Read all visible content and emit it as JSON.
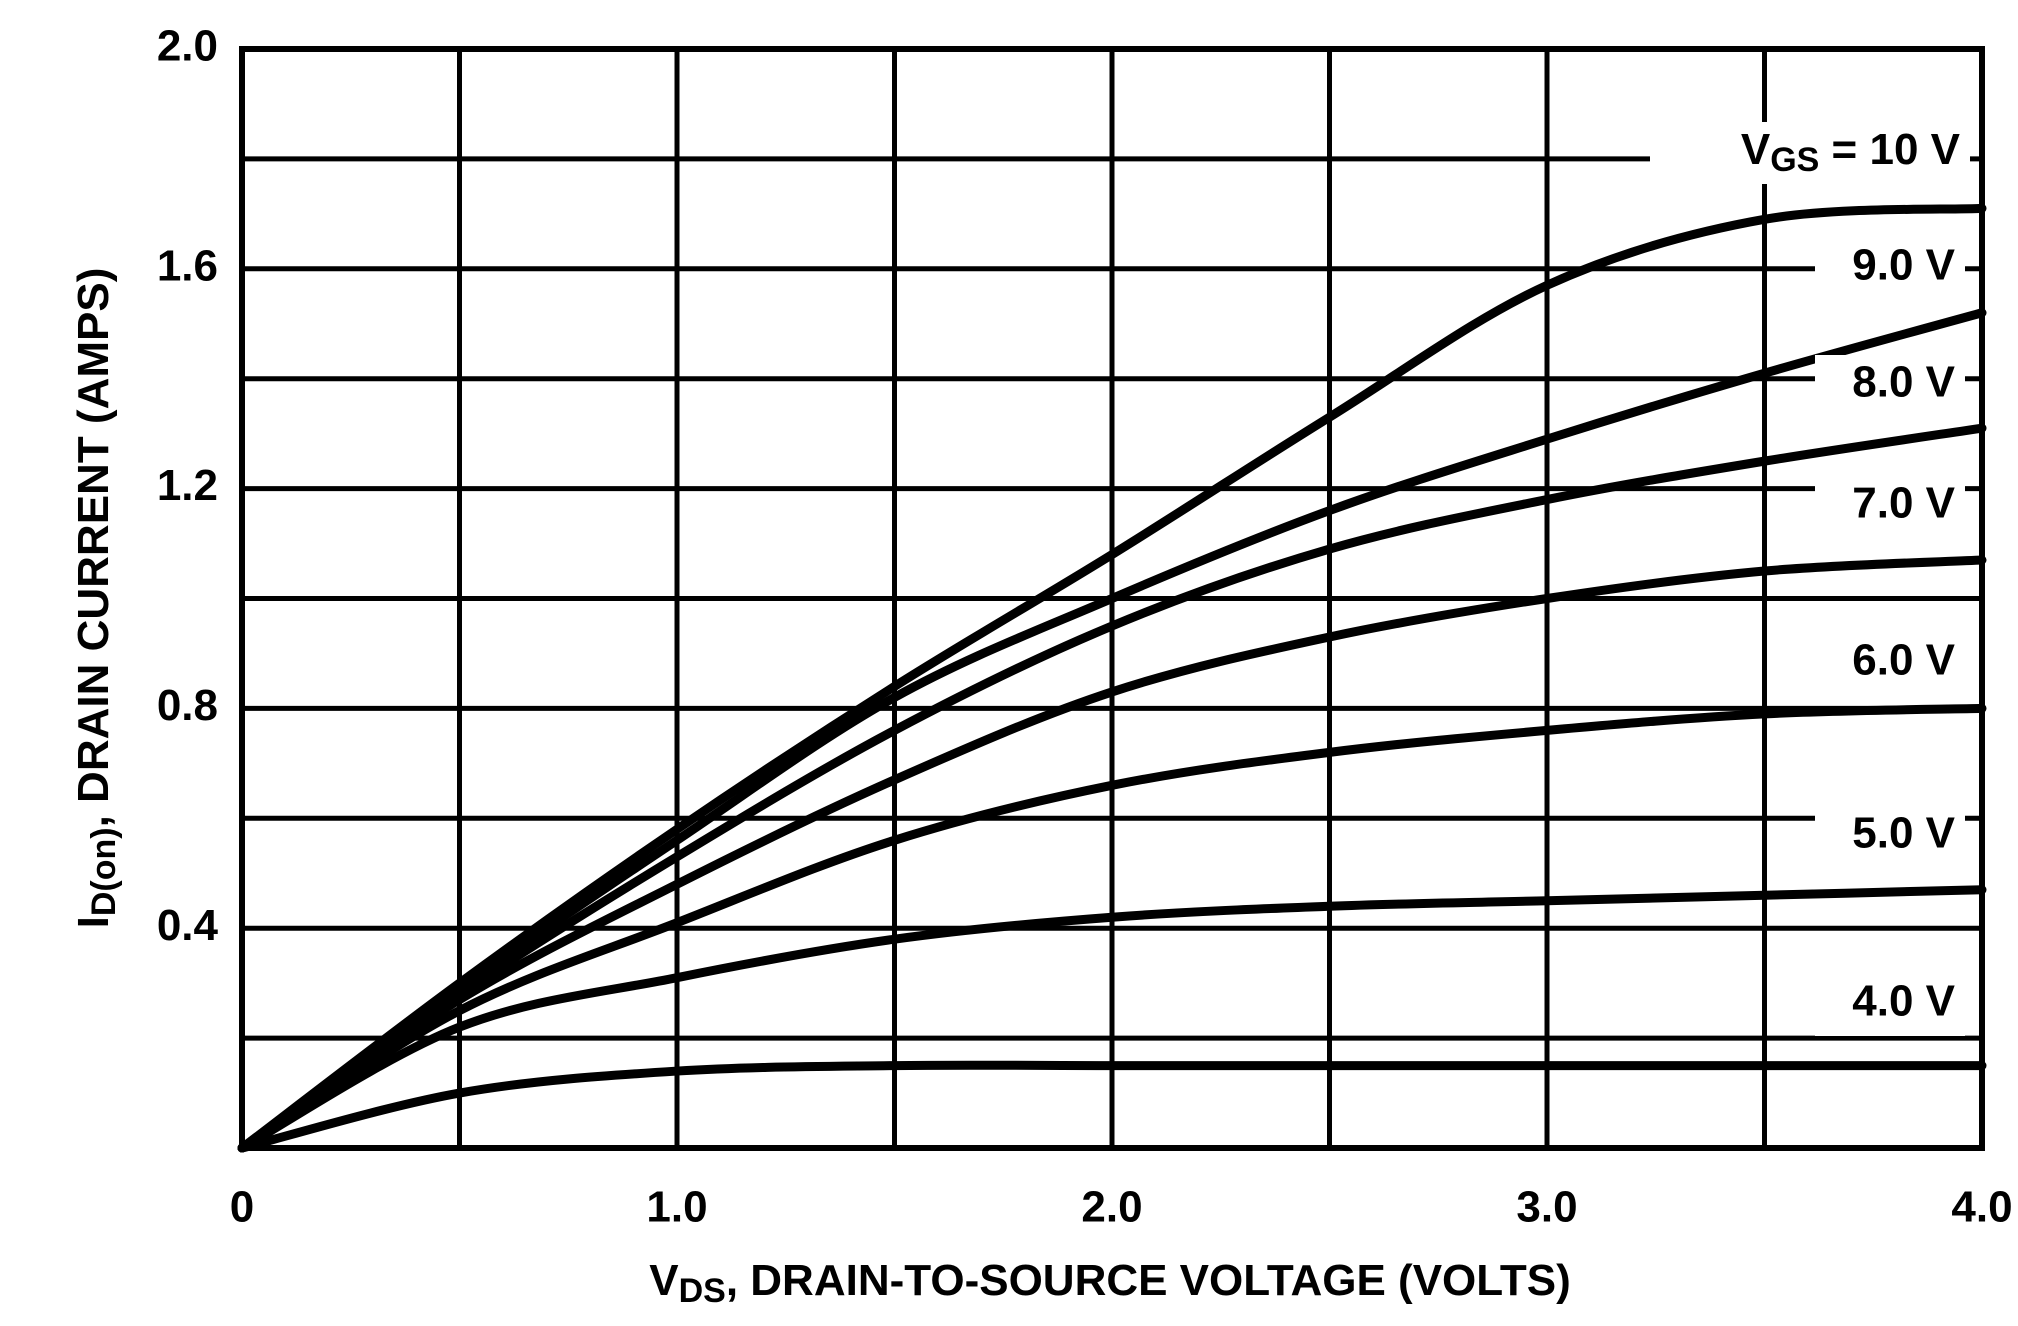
{
  "chart_data": {
    "type": "line",
    "x_label": {
      "main": "V",
      "sub": "DS",
      "rest": ", DRAIN-TO-SOURCE VOLTAGE (VOLTS)"
    },
    "y_label": {
      "main": "I",
      "sub": "D(on)",
      "rest": ", DRAIN CURRENT (AMPS)"
    },
    "legend_prefix": {
      "main": "V",
      "sub": "GS",
      "rest": " = "
    },
    "x": [
      0,
      0.5,
      1.0,
      1.5,
      2.0,
      2.5,
      3.0,
      3.5,
      4.0
    ],
    "xlim": [
      0,
      4
    ],
    "ylim": [
      0,
      2
    ],
    "xticks": [
      0,
      {
        "value": 1,
        "label": "1.0"
      },
      {
        "value": 2,
        "label": "2.0"
      },
      {
        "value": 3,
        "label": "3.0"
      },
      {
        "value": 4,
        "label": "4.0"
      }
    ],
    "yticks": [
      0.4,
      0.8,
      1.2,
      1.6,
      {
        "value": 2,
        "label": "2.0"
      }
    ],
    "xgrid": [
      0.5,
      1.5,
      2.5,
      3.5
    ],
    "ygrid": [
      0.2,
      0.6,
      1.0,
      1.4,
      1.8
    ],
    "grid": true,
    "color": "#000000",
    "series": [
      {
        "name": "10 V",
        "color": "#000000",
        "values": [
          0,
          0.3,
          0.58,
          0.84,
          1.08,
          1.33,
          1.57,
          1.69,
          1.71
        ]
      },
      {
        "name": "9.0 V",
        "color": "#000000",
        "values": [
          0,
          0.29,
          0.56,
          0.82,
          1.0,
          1.16,
          1.29,
          1.41,
          1.52
        ]
      },
      {
        "name": "8.0 V",
        "color": "#000000",
        "values": [
          0,
          0.28,
          0.53,
          0.76,
          0.95,
          1.09,
          1.18,
          1.25,
          1.31
        ]
      },
      {
        "name": "7.0 V",
        "color": "#000000",
        "values": [
          0,
          0.27,
          0.48,
          0.67,
          0.83,
          0.93,
          1.0,
          1.05,
          1.07
        ]
      },
      {
        "name": "6.0 V",
        "color": "#000000",
        "values": [
          0,
          0.25,
          0.41,
          0.56,
          0.66,
          0.72,
          0.76,
          0.79,
          0.8
        ]
      },
      {
        "name": "5.0 V",
        "color": "#000000",
        "values": [
          0,
          0.22,
          0.31,
          0.38,
          0.42,
          0.44,
          0.45,
          0.46,
          0.47
        ]
      },
      {
        "name": "4.0 V",
        "color": "#000000",
        "values": [
          0,
          0.1,
          0.14,
          0.15,
          0.15,
          0.15,
          0.15,
          0.15,
          0.15
        ]
      }
    ]
  }
}
